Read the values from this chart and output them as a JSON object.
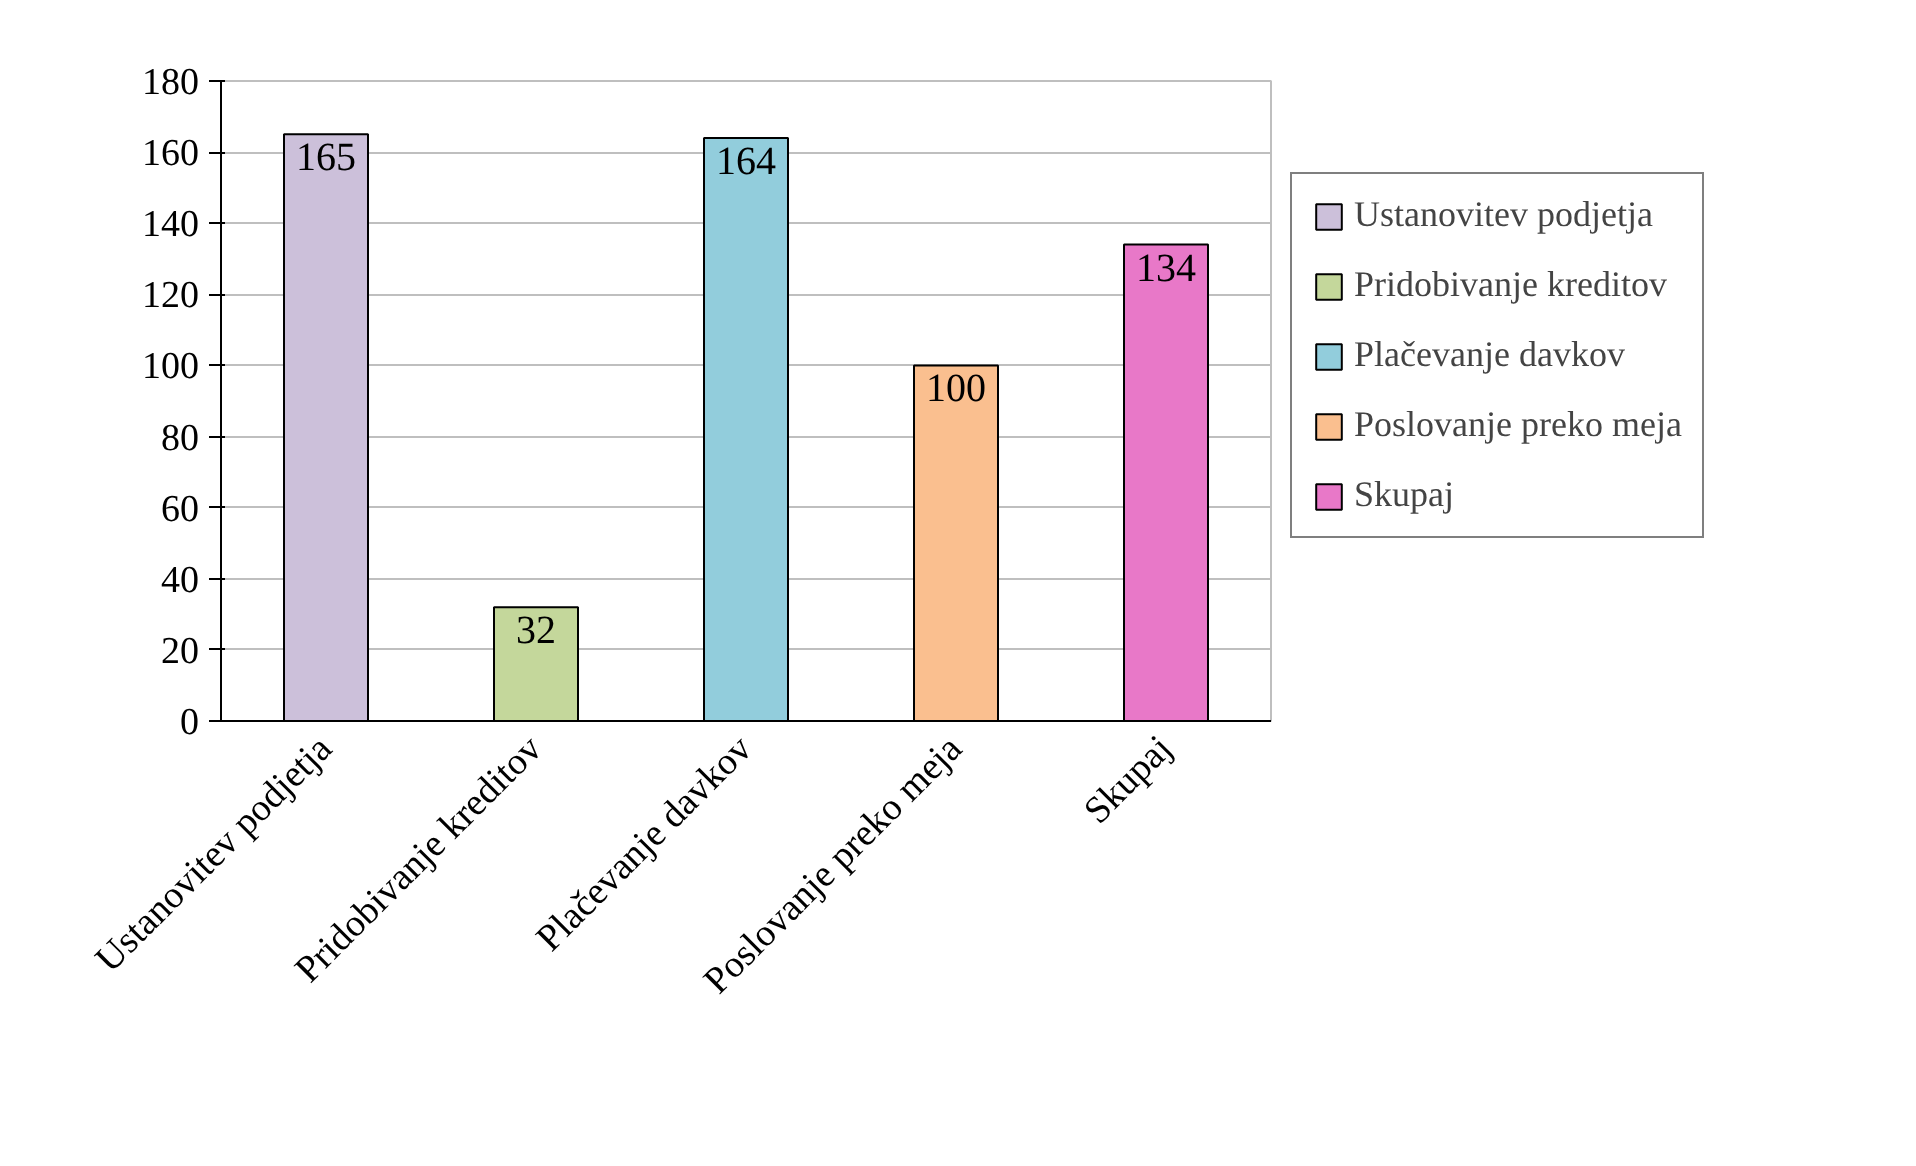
{
  "chart_data": {
    "type": "bar",
    "categories": [
      "Ustanovitev podjetja",
      "Pridobivanje kreditov",
      "Plačevanje davkov",
      "Poslovanje preko meja",
      "Skupaj"
    ],
    "series": [
      {
        "name": "Ustanovitev podjetja",
        "color": "#ccc0da",
        "values": [
          165,
          null,
          null,
          null,
          null
        ]
      },
      {
        "name": "Pridobivanje kreditov",
        "color": "#c4d79b",
        "values": [
          null,
          32,
          null,
          null,
          null
        ]
      },
      {
        "name": "Plačevanje davkov",
        "color": "#92cddc",
        "values": [
          null,
          null,
          164,
          null,
          null
        ]
      },
      {
        "name": "Poslovanje preko meja",
        "color": "#fabf8f",
        "values": [
          null,
          null,
          null,
          100,
          null
        ]
      },
      {
        "name": "Skupaj",
        "color": "#e878c8",
        "values": [
          null,
          null,
          null,
          null,
          134
        ]
      }
    ],
    "ylim": [
      0,
      180
    ],
    "yticks": [
      0,
      20,
      40,
      60,
      80,
      100,
      120,
      140,
      160,
      180
    ],
    "grid": "y",
    "legend": "right",
    "data_labels": true
  }
}
